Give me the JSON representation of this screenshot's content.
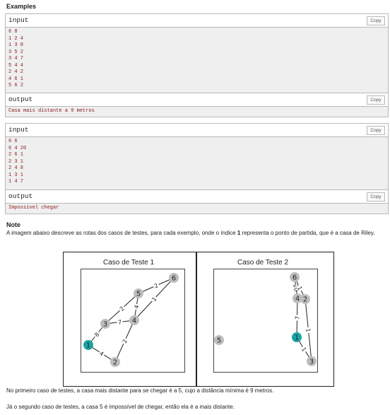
{
  "examples_title": "Examples",
  "copy_label": "Copy",
  "test1": {
    "input_label": "input",
    "input_lines": [
      "6 8",
      "1 2 4",
      "1 3 8",
      "3 5 2",
      "3 4 7",
      "5 4 4",
      "2 4 2",
      "4 6 1",
      "5 6 2"
    ],
    "output_label": "output",
    "output_text": "Casa mais distante a 9 metros"
  },
  "test2": {
    "input_label": "input",
    "input_lines": [
      "6 6",
      "6 4 20",
      "2 6 1",
      "2 3 1",
      "2 4 8",
      "1 3 1",
      "1 4 7"
    ],
    "output_label": "output",
    "output_text": "Impossivel chegar"
  },
  "note": {
    "title": "Note",
    "text_before": "A imagem abaixo descreve as rotas dos casos de testes, para cada exemplo, onde o índice ",
    "text_bold": "1",
    "text_after": " representa o ponto de partida, que é a casa de Riley."
  },
  "figure": {
    "panel1_title": "Caso de Teste 1",
    "panel2_title": "Caso de Teste 2",
    "graph1": {
      "nodes": [
        "1",
        "2",
        "3",
        "4",
        "5",
        "6"
      ],
      "edges": [
        {
          "from": "1",
          "to": "2",
          "weight": "4"
        },
        {
          "from": "1",
          "to": "3",
          "weight": "8"
        },
        {
          "from": "3",
          "to": "5",
          "weight": "2"
        },
        {
          "from": "3",
          "to": "4",
          "weight": "7"
        },
        {
          "from": "5",
          "to": "4",
          "weight": "4"
        },
        {
          "from": "2",
          "to": "4",
          "weight": "2"
        },
        {
          "from": "4",
          "to": "6",
          "weight": "1"
        },
        {
          "from": "5",
          "to": "6",
          "weight": "2"
        }
      ]
    },
    "graph2": {
      "nodes": [
        "1",
        "2",
        "3",
        "4",
        "5",
        "6"
      ],
      "edges": [
        {
          "from": "6",
          "to": "4",
          "weight": "20"
        },
        {
          "from": "2",
          "to": "6",
          "weight": "1"
        },
        {
          "from": "2",
          "to": "3",
          "weight": "1"
        },
        {
          "from": "2",
          "to": "4",
          "weight": "8"
        },
        {
          "from": "1",
          "to": "3",
          "weight": "1"
        },
        {
          "from": "1",
          "to": "4",
          "weight": "7"
        }
      ]
    },
    "colors": {
      "start_node": "#1aa3a3",
      "node": "#bdbdbd",
      "edge": "#222222"
    }
  },
  "caption1": "No primeiro caso de testes, a casa mais distante para se chegar é a 5, cujo a distância mínima é 9 metros.",
  "caption2": "Já o segundo caso de testes, a casa 5 é impossível de chegar, então ela é a mais distante."
}
